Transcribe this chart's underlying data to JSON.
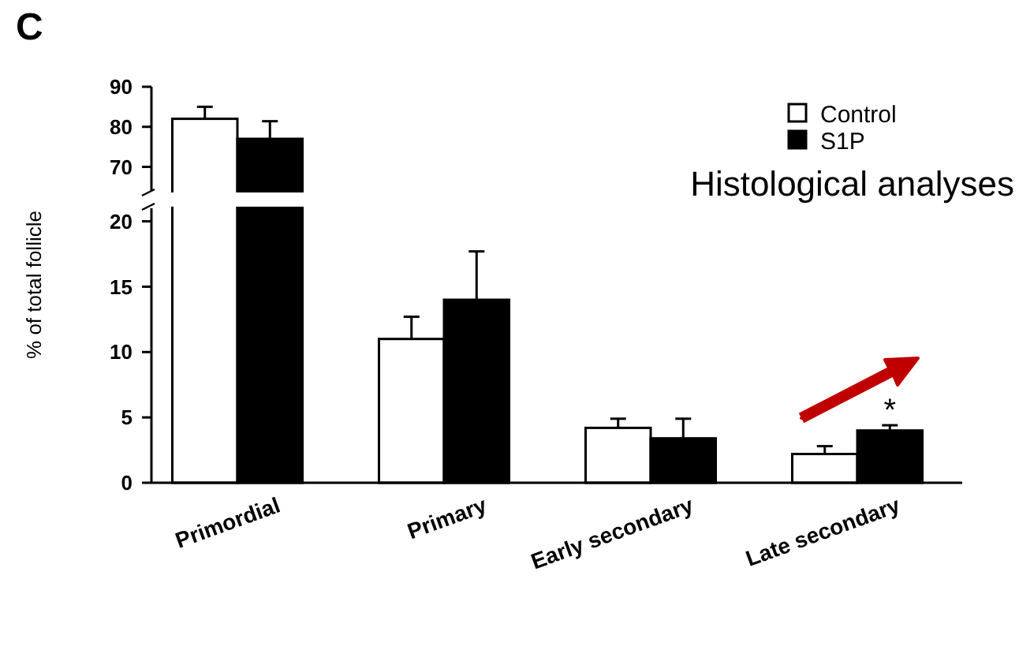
{
  "chart_data": [
    {
      "type": "bar",
      "title": "C",
      "categories": [
        null
      ],
      "series": [
        {
          "name": "Control",
          "color": "#ffffff",
          "values": [
            82
          ],
          "errors": [
            [
              82,
              85
            ]
          ]
        },
        {
          "name": "S1P",
          "color": "#000000",
          "values": [
            77
          ],
          "errors": [
            [
              77,
              81.4
            ]
          ]
        }
      ],
      "ylim": [
        64,
        90
      ],
      "yticks": [
        70,
        80,
        90
      ],
      "tick_labels": "y",
      "grid": false,
      "legend": "top right",
      "annotations": [
        "Histological analyses"
      ]
    },
    {
      "type": "bar",
      "ylabel": "% of total follicle",
      "categories": [
        "Primordial",
        "Primary",
        "Early secondary",
        "Late secondary"
      ],
      "series": [
        {
          "color": "#ffffff",
          "values": [
            null,
            11,
            4.2,
            2.2
          ],
          "errors": [
            null,
            [
              11,
              12.7
            ],
            [
              4.2,
              4.9
            ],
            [
              2.2,
              2.8
            ]
          ]
        },
        {
          "color": "#000000",
          "values": [
            null,
            14,
            3.4,
            4.0
          ],
          "errors": [
            null,
            [
              14,
              17.7
            ],
            [
              3.4,
              4.9
            ],
            [
              4.0,
              4.4
            ]
          ]
        }
      ],
      "ylim": [
        0,
        21
      ],
      "yticks": [
        0,
        5,
        10,
        15,
        20
      ],
      "grid": false,
      "annotations": [
        {
          "text": "*",
          "x": "Late secondary",
          "y": 4.4
        }
      ]
    }
  ]
}
